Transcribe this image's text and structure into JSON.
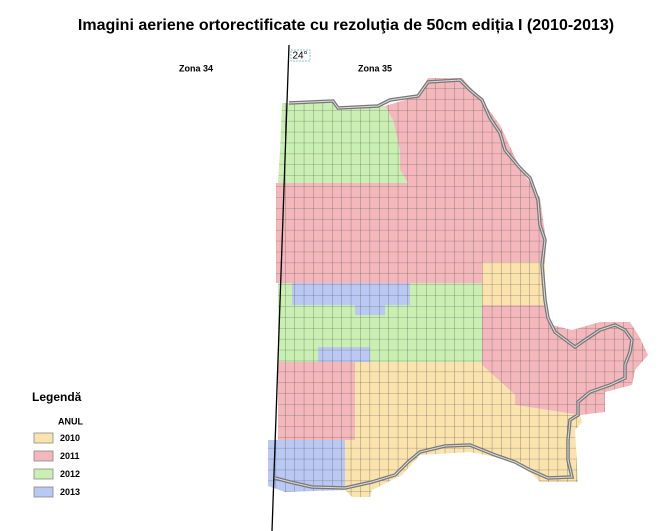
{
  "header": {
    "title": "Imagini aeriene ortorectificate cu rezoluţia de 50cm ediția I (2010-2013)"
  },
  "map": {
    "zones": [
      "Zona 34",
      "Zona 35"
    ],
    "meridian": "24°"
  },
  "legend": {
    "title": "Legendă",
    "subtitle": "ANUL",
    "items": [
      {
        "label": "2010",
        "color": "#fae3ad"
      },
      {
        "label": "2011",
        "color": "#f4b7bc"
      },
      {
        "label": "2012",
        "color": "#c9f0b2"
      },
      {
        "label": "2013",
        "color": "#b9c9f4"
      }
    ]
  }
}
